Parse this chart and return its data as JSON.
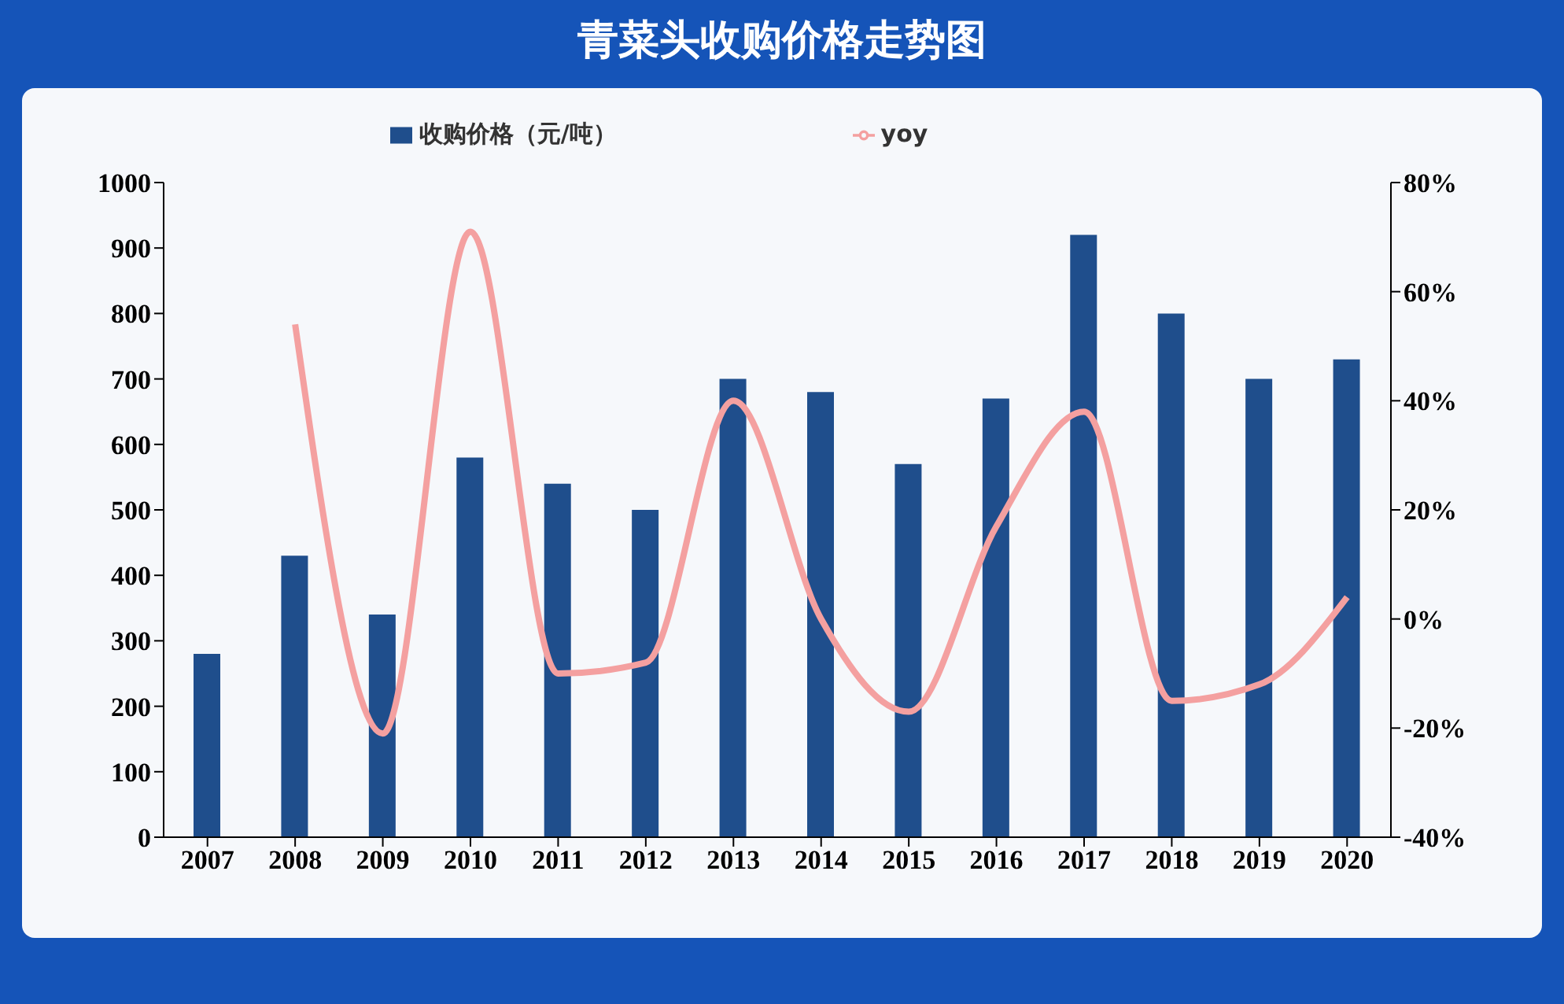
{
  "chart_data": {
    "type": "bar",
    "title": "青菜头收购价格走势图",
    "categories": [
      "2007",
      "2008",
      "2009",
      "2010",
      "2011",
      "2012",
      "2013",
      "2014",
      "2015",
      "2016",
      "2017",
      "2018",
      "2019",
      "2020"
    ],
    "series": [
      {
        "name": "收购价格（元/吨）",
        "color": "#1f4e8c",
        "values": [
          280,
          430,
          340,
          580,
          540,
          500,
          700,
          680,
          570,
          670,
          920,
          800,
          700,
          730
        ]
      },
      {
        "name": "yoy",
        "type": "line",
        "axis": "y2",
        "color": "#f4a0a0",
        "values": [
          null,
          54,
          -21,
          71,
          -10,
          -8,
          40,
          0,
          -17,
          17,
          38,
          -15,
          -12,
          4
        ]
      }
    ],
    "ylim": [
      0,
      1000
    ],
    "yticks": [
      0,
      100,
      200,
      300,
      400,
      500,
      600,
      700,
      800,
      900,
      1000
    ],
    "y2lim": [
      -40,
      80
    ],
    "y2ticks": [
      {
        "value": -40,
        "label": "-40%"
      },
      {
        "value": -20,
        "label": "-20%"
      },
      {
        "value": 0,
        "label": "0%"
      },
      {
        "value": 20,
        "label": "20%"
      },
      {
        "value": 40,
        "label": "40%"
      },
      {
        "value": 60,
        "label": "60%"
      },
      {
        "value": 80,
        "label": "80%"
      }
    ],
    "legend": "top",
    "marker": "none",
    "grid": false
  }
}
